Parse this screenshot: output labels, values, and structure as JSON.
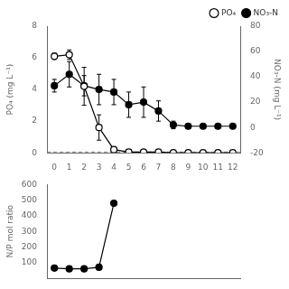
{
  "chart_data": [
    {
      "type": "line",
      "x": [
        0,
        1,
        2,
        3,
        4,
        5,
        6,
        7,
        8,
        9,
        10,
        11,
        12
      ],
      "series": [
        {
          "name": "PO₄",
          "color": "#000000",
          "marker": "open_circle",
          "values": [
            6.1,
            6.2,
            4.2,
            1.6,
            0.2,
            0.05,
            0.05,
            0.05,
            0.0,
            0.0,
            0.0,
            0.0,
            0.0
          ],
          "errors": [
            0.2,
            0.3,
            1.2,
            0.8,
            0.15,
            0.05,
            0.05,
            0.05,
            0.0,
            0.0,
            0.0,
            0.0,
            0.0
          ]
        },
        {
          "name": "NO₃-N",
          "color": "#000000",
          "marker": "circle",
          "axis": "y2",
          "values": [
            33,
            42,
            33,
            30,
            28,
            18,
            20,
            13,
            2,
            1,
            1,
            1,
            1
          ],
          "errors": [
            5,
            10,
            8,
            12,
            10,
            10,
            12,
            8,
            3,
            1,
            1,
            1,
            1
          ]
        }
      ],
      "ylabel": "PO₄ (mg L⁻¹)",
      "y2label": "NO₃-N (mg L⁻¹)",
      "xlim": [
        -0.5,
        12.5
      ],
      "xticks": [
        0,
        1,
        2,
        3,
        4,
        5,
        6,
        7,
        8,
        9,
        10,
        11,
        12
      ],
      "ylim": [
        0,
        8
      ],
      "yticks": [
        0,
        2,
        4,
        6,
        8
      ],
      "y2lim": [
        -20,
        80
      ],
      "y2ticks": [
        -20,
        0,
        20,
        40,
        60,
        80
      ],
      "hline": 0.05,
      "legend": "upper right",
      "grid": false
    },
    {
      "type": "line",
      "x": [
        0,
        1,
        2,
        3,
        4
      ],
      "values": [
        65,
        60,
        60,
        70,
        480
      ],
      "errors": [
        8,
        10,
        8,
        10,
        0
      ],
      "color": "#000000",
      "marker": "circle",
      "ylabel": "N/P mol ratio",
      "xlim": [
        -0.5,
        12.5
      ],
      "ylim": [
        0,
        600
      ],
      "yticks": [
        100,
        200,
        300,
        400,
        500,
        600
      ],
      "grid": false,
      "tick_labels": "y"
    }
  ]
}
